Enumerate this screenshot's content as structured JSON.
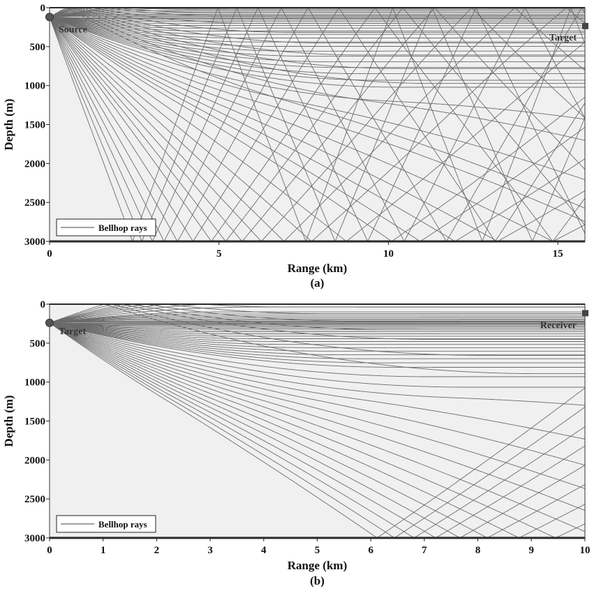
{
  "chart_data": [
    {
      "type": "line",
      "panel_label": "(a)",
      "xlabel": "Range (km)",
      "ylabel": "Depth (m)",
      "xlim": [
        0,
        15.8
      ],
      "ylim": [
        3000,
        0
      ],
      "xticks": [
        0,
        5,
        10,
        15
      ],
      "yticks": [
        0,
        500,
        1000,
        1500,
        2000,
        2500,
        3000
      ],
      "grid": false,
      "legend": {
        "entries": [
          "Bellhop rays"
        ],
        "position": "bottom-left"
      },
      "series": [
        {
          "name": "Bellhop rays",
          "color": "#6b6b6b"
        }
      ],
      "source": {
        "label": "Source",
        "range_km": 0,
        "depth_m": 120
      },
      "target": {
        "label": "Target",
        "range_km": 15.8,
        "depth_m": 240
      },
      "rays": {
        "launch_angles_deg": [
          -14,
          -12.5,
          -11,
          -10,
          -9,
          -8,
          -7,
          -6,
          -5,
          -4.5,
          -4,
          -3.5,
          -3,
          -2.5,
          -2,
          -1.5,
          -1,
          1,
          1.5,
          2,
          2.5,
          3,
          3.5,
          4,
          4.5,
          5,
          5.5,
          6,
          6.5,
          7,
          7.5,
          8,
          8.5,
          9,
          9.5,
          10,
          11,
          12,
          13,
          14,
          15,
          16,
          17,
          18,
          20,
          22,
          24,
          26,
          28,
          30,
          32,
          35,
          38,
          41,
          44,
          47,
          50
        ],
        "max_range_km": 15.8,
        "bottom_depth_m": 3000
      }
    },
    {
      "type": "line",
      "panel_label": "(b)",
      "xlabel": "Range (km)",
      "ylabel": "Depth (m)",
      "xlim": [
        0,
        10
      ],
      "ylim": [
        3000,
        0
      ],
      "xticks": [
        0,
        1,
        2,
        3,
        4,
        5,
        6,
        7,
        8,
        9,
        10
      ],
      "yticks": [
        0,
        500,
        1000,
        1500,
        2000,
        2500,
        3000
      ],
      "grid": false,
      "legend": {
        "entries": [
          "Bellhop rays"
        ],
        "position": "bottom-left"
      },
      "series": [
        {
          "name": "Bellhop rays",
          "color": "#6b6b6b"
        }
      ],
      "source": {
        "label": "Target",
        "range_km": 0,
        "depth_m": 240
      },
      "target": {
        "label": "Receiver",
        "range_km": 10,
        "depth_m": 120
      },
      "rays": {
        "launch_angles_deg": [
          -14,
          -12.5,
          -11,
          -10,
          -9,
          -8,
          -7,
          -6,
          -5,
          -4.5,
          -4,
          -3.5,
          -3,
          -2.5,
          -2,
          -1.5,
          -1,
          1,
          1.5,
          2,
          2.5,
          3,
          3.5,
          4,
          4.5,
          5,
          5.5,
          6,
          6.5,
          7,
          7.5,
          8,
          8.5,
          9,
          9.5,
          10,
          11,
          12,
          13,
          14,
          15,
          16,
          17,
          18,
          19,
          20,
          21,
          22,
          23,
          24,
          25,
          26
        ],
        "max_range_km": 10,
        "bottom_depth_m": 3000
      }
    }
  ]
}
